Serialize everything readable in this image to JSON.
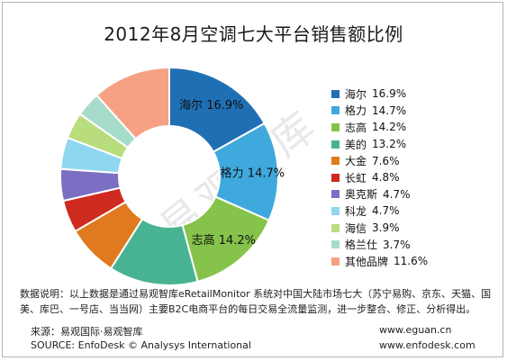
{
  "title": "2012年8月空调七大平台销售额比例",
  "watermark": "易观智库",
  "chart_data": {
    "type": "pie",
    "donut": true,
    "title": "2012年8月空调七大平台销售额比例",
    "legend_position": "right",
    "slices": [
      {
        "label": "海尔",
        "value": 16.9,
        "display": "16.9%",
        "color": "#1f6fb5",
        "inline": true
      },
      {
        "label": "格力",
        "value": 14.7,
        "display": "14.7%",
        "color": "#3fa9dd",
        "inline": true
      },
      {
        "label": "志高",
        "value": 14.2,
        "display": "14.2%",
        "color": "#86c34a",
        "inline": true
      },
      {
        "label": "美的",
        "value": 13.2,
        "display": "13.2%",
        "color": "#48b392",
        "inline": false
      },
      {
        "label": "大金",
        "value": 7.6,
        "display": "7.6%",
        "color": "#e07a1f",
        "inline": false
      },
      {
        "label": "长虹",
        "value": 4.8,
        "display": "4.8%",
        "color": "#cf2a1f",
        "inline": false
      },
      {
        "label": "奥克斯",
        "value": 4.7,
        "display": "4.7%",
        "color": "#7b6fc4",
        "inline": false
      },
      {
        "label": "科龙",
        "value": 4.7,
        "display": "4.7%",
        "color": "#8fd6f0",
        "inline": false
      },
      {
        "label": "海信",
        "value": 3.9,
        "display": "3.9%",
        "color": "#b9dd7c",
        "inline": false
      },
      {
        "label": "格兰仕",
        "value": 3.7,
        "display": "3.7%",
        "color": "#a6dcc9",
        "inline": false
      },
      {
        "label": "其他品牌",
        "value": 11.6,
        "display": "11.6%",
        "color": "#f6a184",
        "inline": false
      }
    ]
  },
  "note": "数据说明：以上数据是通过易观智库eRetailMonitor 系统对中国大陆市场七大（苏宁易购、京东、天猫、国美、库巴、一号店、当当网）主要B2C电商平台的每日交易全流量监测，进一步整合、修正、分析得出。",
  "footer": {
    "source_cn": "来源：易观国际·易观智库",
    "source_en": "SOURCE: EnfoDesk © Analysys International",
    "url1": "www.eguan.cn",
    "url2": "www.enfodesk.com"
  }
}
